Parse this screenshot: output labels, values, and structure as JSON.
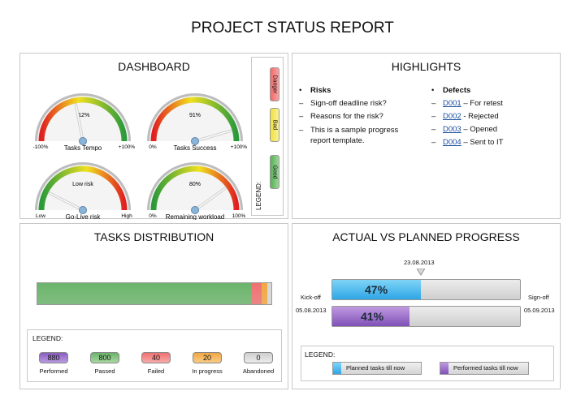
{
  "report_title": "PROJECT STATUS REPORT",
  "dashboard": {
    "title": "DASHBOARD",
    "gauges": [
      {
        "label": "Tasks Tempo",
        "value_text": "-12%",
        "min": "-100%",
        "max": "+100%",
        "fraction": 0.44,
        "scale": "good-high"
      },
      {
        "label": "Tasks Success",
        "value_text": "91%",
        "min": "0%",
        "max": "+100%",
        "fraction": 0.91,
        "scale": "good-high"
      },
      {
        "label": "Go-Live risk",
        "value_text": "Low risk",
        "min": "Low",
        "max": "High",
        "fraction": 0.15,
        "scale": "good-low"
      },
      {
        "label": "Remaining workload",
        "value_text": "80%",
        "min": "0%",
        "max": "100%",
        "fraction": 0.8,
        "scale": "good-low"
      }
    ],
    "legend": {
      "label": "LEGEND:",
      "items": [
        "Danger",
        "Bad",
        "Good"
      ]
    }
  },
  "highlights": {
    "title": "HIGHLIGHTS",
    "risks": {
      "head": "Risks",
      "items": [
        "Sign-off deadline risk?",
        "Reasons for the risk?",
        "This is a sample progress",
        "report template."
      ]
    },
    "defects": {
      "head": "Defects",
      "items": [
        {
          "id": "D001",
          "text": " – For retest"
        },
        {
          "id": "D002",
          "text": " - Rejected"
        },
        {
          "id": "D003",
          "text": " – Opened"
        },
        {
          "id": "D004",
          "text": " – Sent to IT"
        }
      ]
    }
  },
  "tasks_distribution": {
    "title": "TASKS DISTRIBUTION",
    "legend_label": "LEGEND:",
    "chart_data": {
      "type": "bar",
      "categories": [
        "Performed",
        "Passed",
        "Failed",
        "In progress",
        "Abandoned"
      ],
      "values": [
        880,
        800,
        40,
        20,
        0
      ],
      "colors": [
        "#8a5cc2",
        "#6ab46a",
        "#f07070",
        "#f2a640",
        "#d8d8d8"
      ]
    }
  },
  "progress": {
    "title": "ACTUAL VS PLANNED PROGRESS",
    "date_marker": "23.08.2013",
    "kickoff_label": "Kick-off",
    "kickoff_date": "05.08.2013",
    "signoff_label": "Sign-off",
    "signoff_date": "05.09.2013",
    "planned_text": "47%",
    "performed_text": "41%",
    "legend_label": "LEGEND:",
    "planned_legend": "Planned tasks till now",
    "performed_legend": "Performed tasks till now",
    "chart_data": {
      "type": "bar",
      "categories": [
        "Planned tasks till now",
        "Performed tasks till now"
      ],
      "values": [
        47,
        41
      ],
      "ylim": [
        0,
        100
      ]
    }
  }
}
